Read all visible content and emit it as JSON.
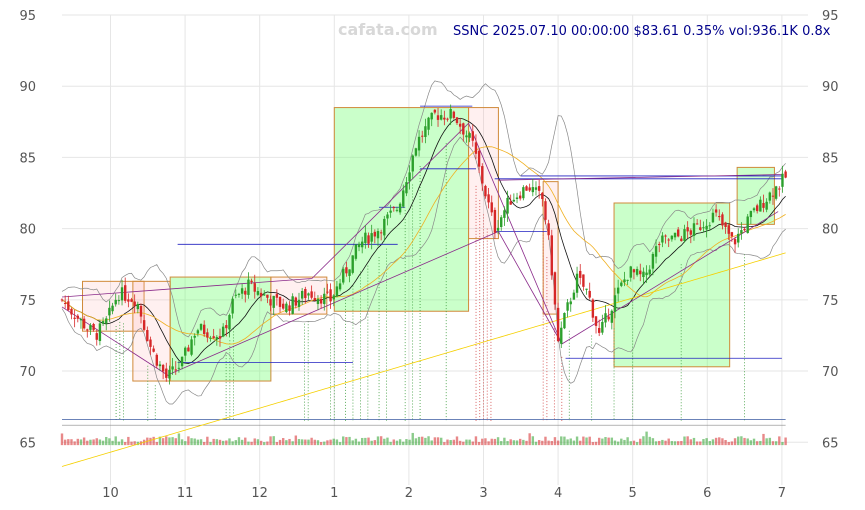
{
  "watermark": "cafata.com",
  "info_text": "SSNC 2025.07.10 00:00:00 $83.61 0.35% vol:936.1K 0.8x",
  "chart_data": {
    "type": "candlestick",
    "ticker": "SSNC",
    "date": "2025.07.10 00:00:00",
    "last_price": 83.61,
    "change_pct": 0.35,
    "volume": "936.1K",
    "volume_ratio": "0.8x",
    "ylim": [
      62,
      95
    ],
    "y_ticks": [
      65,
      70,
      75,
      80,
      85,
      90,
      95
    ],
    "x_ticks": [
      "10",
      "11",
      "12",
      "1",
      "2",
      "3",
      "4",
      "5",
      "6",
      "7"
    ],
    "grid": true,
    "close_path": [
      {
        "t": 0,
        "v": 75.0
      },
      {
        "t": 0.5,
        "v": 73.5
      },
      {
        "t": 0.9,
        "v": 72.5
      },
      {
        "t": 1.2,
        "v": 73.5
      },
      {
        "t": 1.5,
        "v": 75.5
      },
      {
        "t": 2.0,
        "v": 75.0
      },
      {
        "t": 2.4,
        "v": 71.5
      },
      {
        "t": 2.8,
        "v": 69.5
      },
      {
        "t": 3.2,
        "v": 70.5
      },
      {
        "t": 3.6,
        "v": 73.0
      },
      {
        "t": 4.3,
        "v": 72.5
      },
      {
        "t": 4.6,
        "v": 75.0
      },
      {
        "t": 5.0,
        "v": 76.0
      },
      {
        "t": 5.6,
        "v": 75.0
      },
      {
        "t": 6.0,
        "v": 74.5
      },
      {
        "t": 6.6,
        "v": 75.5
      },
      {
        "t": 7.2,
        "v": 75.0
      },
      {
        "t": 7.6,
        "v": 77.0
      },
      {
        "t": 8.0,
        "v": 79.0
      },
      {
        "t": 8.5,
        "v": 80.0
      },
      {
        "t": 9.0,
        "v": 81.5
      },
      {
        "t": 9.5,
        "v": 86.0
      },
      {
        "t": 10.0,
        "v": 88.0
      },
      {
        "t": 10.5,
        "v": 88.0
      },
      {
        "t": 11.0,
        "v": 86.0
      },
      {
        "t": 11.3,
        "v": 83.0
      },
      {
        "t": 11.6,
        "v": 80.0
      },
      {
        "t": 12.0,
        "v": 82.0
      },
      {
        "t": 12.5,
        "v": 83.0
      },
      {
        "t": 12.9,
        "v": 82.0
      },
      {
        "t": 13.1,
        "v": 78.0
      },
      {
        "t": 13.3,
        "v": 72.0
      },
      {
        "t": 13.5,
        "v": 74.0
      },
      {
        "t": 13.8,
        "v": 76.5
      },
      {
        "t": 14.1,
        "v": 75.5
      },
      {
        "t": 14.4,
        "v": 72.5
      },
      {
        "t": 14.8,
        "v": 75.0
      },
      {
        "t": 15.2,
        "v": 77.0
      },
      {
        "t": 15.6,
        "v": 76.5
      },
      {
        "t": 16.0,
        "v": 79.0
      },
      {
        "t": 16.6,
        "v": 79.5
      },
      {
        "t": 17.0,
        "v": 80.0
      },
      {
        "t": 17.5,
        "v": 81.0
      },
      {
        "t": 18.0,
        "v": 79.0
      },
      {
        "t": 18.5,
        "v": 81.0
      },
      {
        "t": 19.0,
        "v": 82.5
      },
      {
        "t": 19.4,
        "v": 83.6
      }
    ],
    "rectangles": [
      {
        "t0": 0.55,
        "t1": 2.2,
        "v0": 72.8,
        "v1": 76.3,
        "kind": "red"
      },
      {
        "t0": 1.9,
        "t1": 2.9,
        "v0": 69.3,
        "v1": 76.3,
        "kind": "red"
      },
      {
        "t0": 2.9,
        "t1": 5.6,
        "v0": 69.3,
        "v1": 76.6,
        "kind": "green"
      },
      {
        "t0": 5.6,
        "t1": 7.1,
        "v0": 74.0,
        "v1": 76.6,
        "kind": "red"
      },
      {
        "t0": 7.3,
        "t1": 10.9,
        "v0": 74.2,
        "v1": 88.5,
        "kind": "green"
      },
      {
        "t0": 10.9,
        "t1": 11.7,
        "v0": 79.3,
        "v1": 88.5,
        "kind": "red"
      },
      {
        "t0": 12.9,
        "t1": 13.3,
        "v0": 74.0,
        "v1": 83.3,
        "kind": "red"
      },
      {
        "t0": 14.8,
        "t1": 17.9,
        "v0": 70.3,
        "v1": 81.8,
        "kind": "green"
      },
      {
        "t0": 18.1,
        "t1": 19.1,
        "v0": 80.3,
        "v1": 84.3,
        "kind": "green"
      }
    ],
    "level_lines": [
      {
        "t0": 3.1,
        "t1": 9.0,
        "v": 78.9
      },
      {
        "t0": 3.1,
        "t1": 7.8,
        "v": 70.6
      },
      {
        "t0": 8.5,
        "t1": 9.2,
        "v": 81.5
      },
      {
        "t0": 9.6,
        "t1": 11.0,
        "v": 88.6
      },
      {
        "t0": 9.6,
        "t1": 11.1,
        "v": 84.2
      },
      {
        "t0": 11.6,
        "t1": 19.3,
        "v": 83.5
      },
      {
        "t0": 12.3,
        "t1": 19.3,
        "v": 83.7
      },
      {
        "t0": 11.6,
        "t1": 13.0,
        "v": 79.8
      },
      {
        "t0": 13.5,
        "t1": 19.3,
        "v": 70.9
      }
    ],
    "trend_lines": [
      {
        "t0": 0,
        "v0": 74.5,
        "t1": 2.9,
        "v1": 69.6
      },
      {
        "t0": 0,
        "v0": 75.2,
        "t1": 6.7,
        "v1": 76.5
      },
      {
        "t0": 2.9,
        "v0": 69.8,
        "t1": 11.7,
        "v1": 79.8
      },
      {
        "t0": 6.7,
        "v0": 76.5,
        "t1": 10.9,
        "v1": 87.4
      },
      {
        "t0": 10.9,
        "v0": 87.4,
        "t1": 13.4,
        "v1": 71.9
      },
      {
        "t0": 11.7,
        "v0": 79.8,
        "t1": 13.4,
        "v1": 71.9
      },
      {
        "t0": 13.4,
        "v0": 71.9,
        "t1": 19.2,
        "v1": 81.2
      },
      {
        "t0": 11.7,
        "v0": 83.4,
        "t1": 19.3,
        "v1": 83.8
      }
    ],
    "marker_lines": [
      1.45,
      1.55,
      1.65,
      2.3,
      2.5,
      4.4,
      4.5,
      4.6,
      6.5,
      6.6,
      7.2,
      7.3,
      7.6,
      7.8,
      8.0,
      8.2,
      8.5,
      8.7,
      9.2,
      9.4,
      9.6,
      10.3,
      11.1,
      11.2,
      11.3,
      11.4,
      11.5,
      12.9,
      13.0,
      13.2,
      13.4,
      13.6,
      14.2,
      14.8,
      15.3,
      16.6,
      18.3
    ]
  }
}
